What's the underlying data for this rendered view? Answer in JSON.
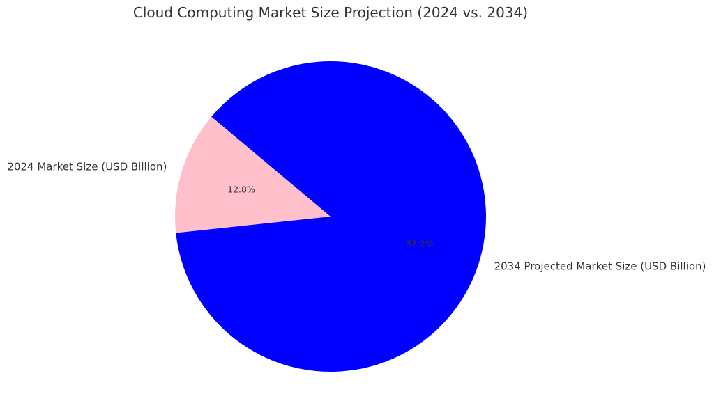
{
  "chart_data": {
    "type": "pie",
    "title": "Cloud Computing Market Size Projection (2024 vs. 2034)",
    "slices": [
      {
        "label": "2024 Market Size (USD Billion)",
        "value": 12.8,
        "pct_label": "12.8%",
        "color": "#ffc0cb"
      },
      {
        "label": "2034 Projected Market Size (USD Billion)",
        "value": 87.2,
        "pct_label": "87.2%",
        "color": "#0000ff"
      }
    ],
    "start_angle_deg": 140,
    "direction": "counterclockwise",
    "legend": "none"
  }
}
